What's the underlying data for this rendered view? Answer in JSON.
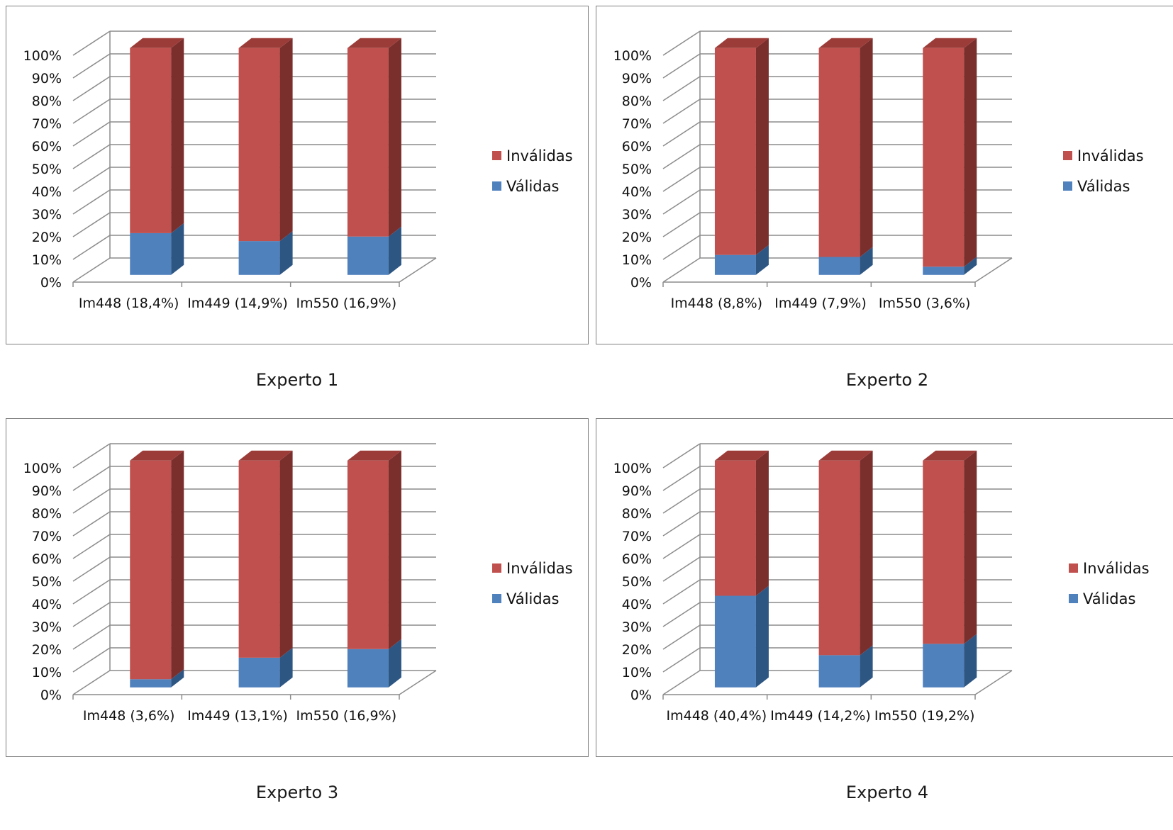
{
  "legend": {
    "invalid_label": "Inválidas",
    "valid_label": "Válidas"
  },
  "colors": {
    "invalid": "#C0504D",
    "invalid_side": "#7B2F2D",
    "invalid_top": "#9C3C39",
    "valid": "#4F81BD",
    "valid_side": "#2E5683",
    "valid_top": "#3B6A9E",
    "grid": "#8C8C8C"
  },
  "chart_data": [
    {
      "type": "bar",
      "stacked": "percent",
      "title": "Experto 1",
      "categories": [
        "Im448 (18,4%)",
        "Im449 (14,9%)",
        "Im550 (16,9%)"
      ],
      "series": [
        {
          "name": "Válidas",
          "values": [
            18.4,
            14.9,
            16.9
          ]
        },
        {
          "name": "Inválidas",
          "values": [
            81.6,
            85.1,
            83.1
          ]
        }
      ],
      "ylim": [
        0,
        100
      ],
      "yticks": [
        "0%",
        "10%",
        "20%",
        "30%",
        "40%",
        "50%",
        "60%",
        "70%",
        "80%",
        "90%",
        "100%"
      ],
      "grid": true,
      "legend_position": "right"
    },
    {
      "type": "bar",
      "stacked": "percent",
      "title": "Experto 2",
      "categories": [
        "Im448 (8,8%)",
        "Im449 (7,9%)",
        "Im550 (3,6%)"
      ],
      "series": [
        {
          "name": "Válidas",
          "values": [
            8.8,
            7.9,
            3.6
          ]
        },
        {
          "name": "Inválidas",
          "values": [
            91.2,
            92.1,
            96.4
          ]
        }
      ],
      "ylim": [
        0,
        100
      ],
      "yticks": [
        "0%",
        "10%",
        "20%",
        "30%",
        "40%",
        "50%",
        "60%",
        "70%",
        "80%",
        "90%",
        "100%"
      ],
      "grid": true,
      "legend_position": "right"
    },
    {
      "type": "bar",
      "stacked": "percent",
      "title": "Experto 3",
      "categories": [
        "Im448 (3,6%)",
        "Im449 (13,1%)",
        "Im550 (16,9%)"
      ],
      "series": [
        {
          "name": "Válidas",
          "values": [
            3.6,
            13.1,
            16.9
          ]
        },
        {
          "name": "Inválidas",
          "values": [
            96.4,
            86.9,
            83.1
          ]
        }
      ],
      "ylim": [
        0,
        100
      ],
      "yticks": [
        "0%",
        "10%",
        "20%",
        "30%",
        "40%",
        "50%",
        "60%",
        "70%",
        "80%",
        "90%",
        "100%"
      ],
      "grid": true,
      "legend_position": "right"
    },
    {
      "type": "bar",
      "stacked": "percent",
      "title": "Experto 4",
      "categories": [
        "Im448 (40,4%)",
        "Im449 (14,2%)",
        "Im550 (19,2%)"
      ],
      "series": [
        {
          "name": "Válidas",
          "values": [
            40.4,
            14.2,
            19.2
          ]
        },
        {
          "name": "Inválidas",
          "values": [
            59.6,
            85.8,
            80.8
          ]
        }
      ],
      "ylim": [
        0,
        100
      ],
      "yticks": [
        "0%",
        "10%",
        "20%",
        "30%",
        "40%",
        "50%",
        "60%",
        "70%",
        "80%",
        "90%",
        "100%"
      ],
      "grid": true,
      "legend_position": "right"
    }
  ]
}
